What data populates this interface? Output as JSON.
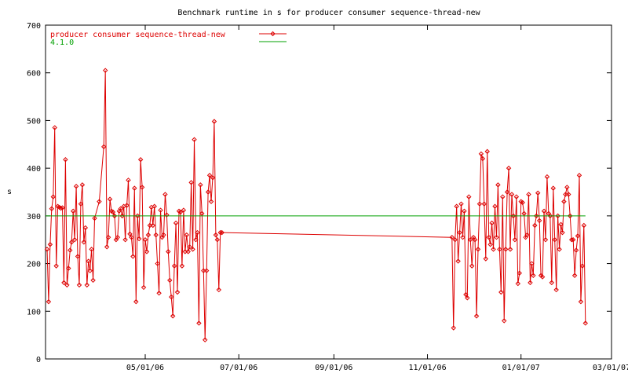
{
  "chart_data": {
    "type": "line",
    "title": "Benchmark runtime in s for producer consumer sequence-thread-new",
    "ylabel": "s",
    "xlabel": "",
    "ylim": [
      0,
      700
    ],
    "yticks": [
      0,
      100,
      200,
      300,
      400,
      500,
      600,
      700
    ],
    "xlim": [
      "2006-02-25",
      "2007-03-01"
    ],
    "xticks": [
      {
        "date": "2006-05-01",
        "label": "05/01/06"
      },
      {
        "date": "2006-07-01",
        "label": "07/01/06"
      },
      {
        "date": "2006-09-01",
        "label": "09/01/06"
      },
      {
        "date": "2006-11-01",
        "label": "11/01/06"
      },
      {
        "date": "2007-01-01",
        "label": "01/01/07"
      },
      {
        "date": "2007-03-01",
        "label": "03/01/07"
      }
    ],
    "grid": false,
    "legend_position": "top-left",
    "series": [
      {
        "name": "producer consumer sequence-thread-new",
        "color": "#dd0000",
        "marker": "diamond",
        "points": [
          [
            "2006-02-26",
            230
          ],
          [
            "2006-02-27",
            120
          ],
          [
            "2006-02-28",
            240
          ],
          [
            "2006-03-01",
            315
          ],
          [
            "2006-03-02",
            340
          ],
          [
            "2006-03-03",
            485
          ],
          [
            "2006-03-04",
            195
          ],
          [
            "2006-03-05",
            320
          ],
          [
            "2006-03-06",
            318
          ],
          [
            "2006-03-07",
            316
          ],
          [
            "2006-03-08",
            317
          ],
          [
            "2006-03-09",
            160
          ],
          [
            "2006-03-10",
            418
          ],
          [
            "2006-03-11",
            155
          ],
          [
            "2006-03-12",
            190
          ],
          [
            "2006-03-13",
            228
          ],
          [
            "2006-03-14",
            245
          ],
          [
            "2006-03-15",
            310
          ],
          [
            "2006-03-16",
            250
          ],
          [
            "2006-03-17",
            362
          ],
          [
            "2006-03-18",
            215
          ],
          [
            "2006-03-19",
            155
          ],
          [
            "2006-03-20",
            325
          ],
          [
            "2006-03-21",
            365
          ],
          [
            "2006-03-22",
            245
          ],
          [
            "2006-03-23",
            275
          ],
          [
            "2006-03-24",
            155
          ],
          [
            "2006-03-25",
            205
          ],
          [
            "2006-03-26",
            185
          ],
          [
            "2006-03-27",
            230
          ],
          [
            "2006-03-28",
            165
          ],
          [
            "2006-03-29",
            295
          ],
          [
            "2006-04-01",
            330
          ],
          [
            "2006-04-04",
            445
          ],
          [
            "2006-04-05",
            605
          ],
          [
            "2006-04-06",
            235
          ],
          [
            "2006-04-07",
            255
          ],
          [
            "2006-04-08",
            335
          ],
          [
            "2006-04-09",
            310
          ],
          [
            "2006-04-10",
            308
          ],
          [
            "2006-04-11",
            300
          ],
          [
            "2006-04-12",
            250
          ],
          [
            "2006-04-13",
            255
          ],
          [
            "2006-04-14",
            310
          ],
          [
            "2006-04-15",
            315
          ],
          [
            "2006-04-16",
            300
          ],
          [
            "2006-04-17",
            320
          ],
          [
            "2006-04-18",
            250
          ],
          [
            "2006-04-19",
            322
          ],
          [
            "2006-04-20",
            375
          ],
          [
            "2006-04-21",
            262
          ],
          [
            "2006-04-22",
            255
          ],
          [
            "2006-04-23",
            215
          ],
          [
            "2006-04-24",
            358
          ],
          [
            "2006-04-25",
            120
          ],
          [
            "2006-04-26",
            300
          ],
          [
            "2006-04-27",
            252
          ],
          [
            "2006-04-28",
            418
          ],
          [
            "2006-04-29",
            360
          ],
          [
            "2006-04-30",
            150
          ],
          [
            "2006-05-01",
            250
          ],
          [
            "2006-05-02",
            225
          ],
          [
            "2006-05-03",
            260
          ],
          [
            "2006-05-04",
            280
          ],
          [
            "2006-05-05",
            318
          ],
          [
            "2006-05-06",
            280
          ],
          [
            "2006-05-07",
            320
          ],
          [
            "2006-05-08",
            260
          ],
          [
            "2006-05-09",
            200
          ],
          [
            "2006-05-10",
            138
          ],
          [
            "2006-05-11",
            312
          ],
          [
            "2006-05-12",
            255
          ],
          [
            "2006-05-13",
            260
          ],
          [
            "2006-05-14",
            345
          ],
          [
            "2006-05-15",
            302
          ],
          [
            "2006-05-16",
            225
          ],
          [
            "2006-05-17",
            165
          ],
          [
            "2006-05-18",
            130
          ],
          [
            "2006-05-19",
            90
          ],
          [
            "2006-05-20",
            195
          ],
          [
            "2006-05-21",
            285
          ],
          [
            "2006-05-22",
            140
          ],
          [
            "2006-05-23",
            310
          ],
          [
            "2006-05-24",
            308
          ],
          [
            "2006-05-25",
            195
          ],
          [
            "2006-05-26",
            312
          ],
          [
            "2006-05-27",
            225
          ],
          [
            "2006-05-28",
            260
          ],
          [
            "2006-05-29",
            225
          ],
          [
            "2006-05-30",
            235
          ],
          [
            "2006-05-31",
            370
          ],
          [
            "2006-06-01",
            230
          ],
          [
            "2006-06-02",
            460
          ],
          [
            "2006-06-03",
            250
          ],
          [
            "2006-06-04",
            265
          ],
          [
            "2006-06-05",
            75
          ],
          [
            "2006-06-06",
            365
          ],
          [
            "2006-06-07",
            305
          ],
          [
            "2006-06-08",
            185
          ],
          [
            "2006-06-09",
            40
          ],
          [
            "2006-06-10",
            185
          ],
          [
            "2006-06-11",
            350
          ],
          [
            "2006-06-12",
            385
          ],
          [
            "2006-06-13",
            330
          ],
          [
            "2006-06-14",
            380
          ],
          [
            "2006-06-15",
            498
          ],
          [
            "2006-06-16",
            260
          ],
          [
            "2006-06-17",
            250
          ],
          [
            "2006-06-18",
            145
          ],
          [
            "2006-06-19",
            265
          ],
          [
            "2006-06-20",
            265
          ],
          [
            "2006-11-17",
            255
          ],
          [
            "2006-11-18",
            65
          ],
          [
            "2006-11-19",
            250
          ],
          [
            "2006-11-20",
            320
          ],
          [
            "2006-11-21",
            205
          ],
          [
            "2006-11-22",
            265
          ],
          [
            "2006-11-23",
            325
          ],
          [
            "2006-11-24",
            255
          ],
          [
            "2006-11-25",
            310
          ],
          [
            "2006-11-26",
            135
          ],
          [
            "2006-11-27",
            128
          ],
          [
            "2006-11-28",
            340
          ],
          [
            "2006-11-29",
            250
          ],
          [
            "2006-11-30",
            195
          ],
          [
            "2006-12-01",
            255
          ],
          [
            "2006-12-02",
            250
          ],
          [
            "2006-12-03",
            90
          ],
          [
            "2006-12-04",
            230
          ],
          [
            "2006-12-05",
            325
          ],
          [
            "2006-12-06",
            430
          ],
          [
            "2006-12-07",
            420
          ],
          [
            "2006-12-08",
            325
          ],
          [
            "2006-12-09",
            210
          ],
          [
            "2006-12-10",
            435
          ],
          [
            "2006-12-11",
            255
          ],
          [
            "2006-12-12",
            240
          ],
          [
            "2006-12-13",
            285
          ],
          [
            "2006-12-14",
            230
          ],
          [
            "2006-12-15",
            320
          ],
          [
            "2006-12-16",
            255
          ],
          [
            "2006-12-17",
            365
          ],
          [
            "2006-12-18",
            230
          ],
          [
            "2006-12-19",
            140
          ],
          [
            "2006-12-20",
            340
          ],
          [
            "2006-12-21",
            80
          ],
          [
            "2006-12-22",
            230
          ],
          [
            "2006-12-23",
            350
          ],
          [
            "2006-12-24",
            400
          ],
          [
            "2006-12-25",
            230
          ],
          [
            "2006-12-26",
            345
          ],
          [
            "2006-12-27",
            300
          ],
          [
            "2006-12-28",
            250
          ],
          [
            "2006-12-29",
            340
          ],
          [
            "2006-12-30",
            158
          ],
          [
            "2006-12-31",
            180
          ],
          [
            "2007-01-01",
            330
          ],
          [
            "2007-01-02",
            328
          ],
          [
            "2007-01-03",
            305
          ],
          [
            "2007-01-04",
            255
          ],
          [
            "2007-01-05",
            260
          ],
          [
            "2007-01-06",
            345
          ],
          [
            "2007-01-07",
            160
          ],
          [
            "2007-01-08",
            200
          ],
          [
            "2007-01-09",
            175
          ],
          [
            "2007-01-10",
            280
          ],
          [
            "2007-01-11",
            300
          ],
          [
            "2007-01-12",
            348
          ],
          [
            "2007-01-13",
            290
          ],
          [
            "2007-01-14",
            175
          ],
          [
            "2007-01-15",
            172
          ],
          [
            "2007-01-16",
            310
          ],
          [
            "2007-01-17",
            250
          ],
          [
            "2007-01-18",
            382
          ],
          [
            "2007-01-19",
            305
          ],
          [
            "2007-01-20",
            300
          ],
          [
            "2007-01-21",
            160
          ],
          [
            "2007-01-22",
            358
          ],
          [
            "2007-01-23",
            250
          ],
          [
            "2007-01-24",
            145
          ],
          [
            "2007-01-25",
            300
          ],
          [
            "2007-01-26",
            230
          ],
          [
            "2007-01-27",
            282
          ],
          [
            "2007-01-28",
            265
          ],
          [
            "2007-01-29",
            330
          ],
          [
            "2007-01-30",
            345
          ],
          [
            "2007-01-31",
            360
          ],
          [
            "2007-02-01",
            345
          ],
          [
            "2007-02-02",
            300
          ],
          [
            "2007-02-03",
            250
          ],
          [
            "2007-02-04",
            250
          ],
          [
            "2007-02-05",
            175
          ],
          [
            "2007-02-06",
            228
          ],
          [
            "2007-02-07",
            258
          ],
          [
            "2007-02-08",
            385
          ],
          [
            "2007-02-09",
            120
          ],
          [
            "2007-02-10",
            195
          ],
          [
            "2007-02-11",
            280
          ],
          [
            "2007-02-12",
            75
          ]
        ]
      },
      {
        "name": "4.1.0",
        "color": "#00a000",
        "marker": "none",
        "points": [
          [
            "2006-02-25",
            300
          ],
          [
            "2007-02-12",
            300
          ]
        ]
      }
    ]
  }
}
